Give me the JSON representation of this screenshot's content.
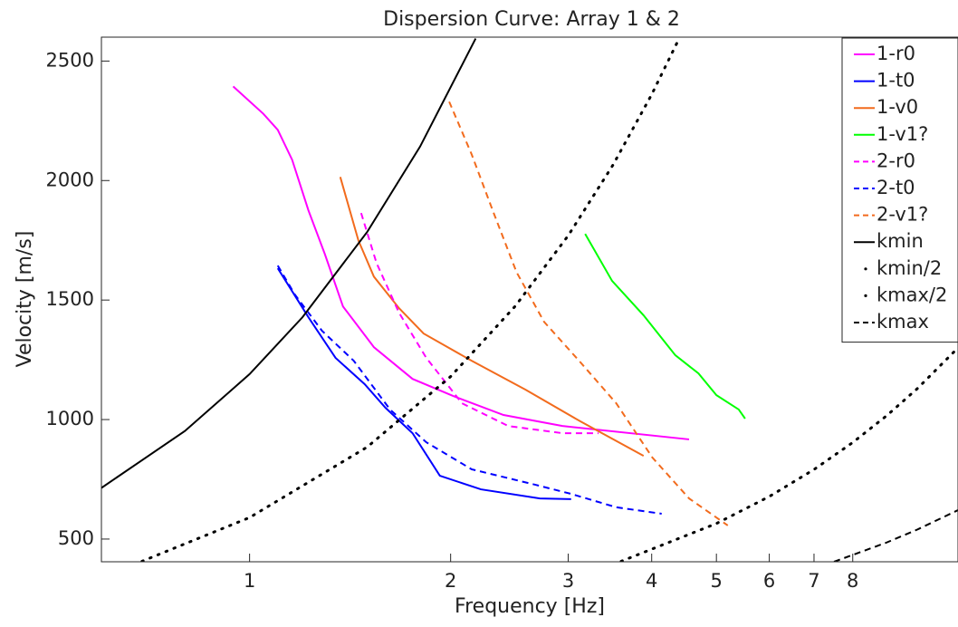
{
  "chart_data": {
    "type": "line",
    "title": "Dispersion Curve: Array 1 & 2",
    "x_label": "Frequency [Hz]",
    "y_label": "Velocity [m/s]",
    "x_scale": "log",
    "xlim": [
      0.6,
      11.5
    ],
    "ylim": [
      405,
      2600
    ],
    "xticks": [
      1,
      2,
      3,
      4,
      5,
      6,
      7,
      8
    ],
    "yticks": [
      500,
      1000,
      1500,
      2000,
      2500
    ],
    "grid": false,
    "legend": "upper right",
    "series": [
      {
        "name": "1-r0",
        "color": "#ff00ff",
        "style": "solid",
        "x": [
          0.945,
          1.048,
          1.102,
          1.158,
          1.225,
          1.296,
          1.38,
          1.535,
          1.754,
          2.02,
          2.4,
          2.94,
          4.55
        ],
        "values": [
          2394,
          2280,
          2212,
          2087,
          1875,
          1693,
          1473,
          1303,
          1170,
          1098,
          1019,
          973,
          917
        ]
      },
      {
        "name": "1-t0",
        "color": "#0000ff",
        "style": "solid",
        "x": [
          1.102,
          1.225,
          1.345,
          1.487,
          1.598,
          1.754,
          1.927,
          2.22,
          2.72,
          3.03
        ],
        "values": [
          1633,
          1428,
          1258,
          1148,
          1049,
          943,
          765,
          708,
          670,
          667
        ]
      },
      {
        "name": "1-v0",
        "color": "#f26b1d",
        "style": "solid",
        "x": [
          1.367,
          1.455,
          1.535,
          1.674,
          1.822,
          2.15,
          2.59,
          3.13,
          3.89
        ],
        "values": [
          2015,
          1750,
          1598,
          1466,
          1360,
          1246,
          1125,
          992,
          848
        ]
      },
      {
        "name": "1-v1?",
        "color": "#00ff00",
        "style": "solid",
        "x": [
          3.18,
          3.49,
          3.89,
          4.34,
          4.7,
          5.0,
          5.4,
          5.52
        ],
        "values": [
          1777,
          1580,
          1436,
          1269,
          1193,
          1102,
          1042,
          1004
        ]
      },
      {
        "name": "2-r0",
        "color": "#ff00ff",
        "style": "dashed",
        "x": [
          1.469,
          1.549,
          1.674,
          1.839,
          2.08,
          2.44,
          2.94,
          3.33
        ],
        "values": [
          1864,
          1655,
          1447,
          1258,
          1068,
          973,
          943,
          943
        ]
      },
      {
        "name": "2-t0",
        "color": "#0000ff",
        "style": "dashed",
        "x": [
          1.102,
          1.169,
          1.284,
          1.432,
          1.623,
          1.839,
          2.15,
          2.68,
          3.03,
          3.54,
          4.14
        ],
        "values": [
          1644,
          1523,
          1371,
          1246,
          1042,
          905,
          792,
          727,
          689,
          633,
          606
        ]
      },
      {
        "name": "2-v1?",
        "color": "#f26b1d",
        "style": "dashed",
        "x": [
          1.99,
          2.15,
          2.32,
          2.51,
          2.76,
          3.13,
          3.54,
          4.01,
          4.55,
          5.2
        ],
        "values": [
          2330,
          2110,
          1864,
          1617,
          1409,
          1239,
          1068,
          841,
          670,
          557
        ]
      },
      {
        "name": "kmin",
        "color": "#000000",
        "style": "solid",
        "x": [
          0.6,
          0.8,
          1,
          1.2,
          1.5,
          1.8,
          2.18
        ],
        "values": [
          714,
          952,
          1190,
          1428,
          1785,
          2142,
          2594
        ]
      },
      {
        "name": "kmin/2",
        "color": "#000000",
        "style": "dotted",
        "x": [
          0.69,
          1,
          1.5,
          2,
          2.5,
          3,
          3.5,
          4,
          4.4
        ],
        "values": [
          407,
          590,
          885,
          1180,
          1475,
          1770,
          2065,
          2360,
          2596
        ]
      },
      {
        "name": "kmax/2",
        "color": "#000000",
        "style": "dotted",
        "x": [
          3.6,
          5,
          6,
          7,
          8,
          9,
          10,
          11.5
        ],
        "values": [
          407,
          565,
          678,
          791,
          904,
          1017,
          1130,
          1300
        ]
      },
      {
        "name": "kmax",
        "color": "#000000",
        "style": "dashed",
        "x": [
          7.5,
          9,
          10,
          11.5
        ],
        "values": [
          405,
          486,
          540,
          621
        ]
      }
    ]
  }
}
